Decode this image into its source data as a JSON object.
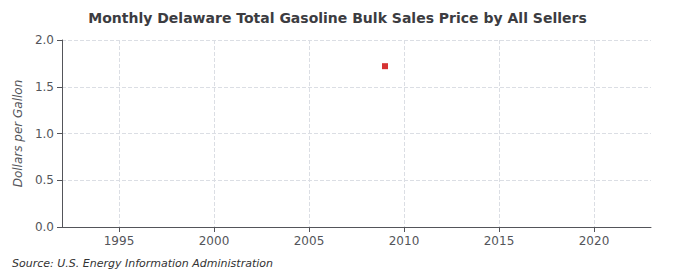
{
  "chart_data": {
    "type": "scatter",
    "title": "Monthly Delaware Total Gasoline Bulk Sales Price by All Sellers",
    "ylabel": "Dollars per Gallon",
    "source": "Source: U.S. Energy Information Administration",
    "x": [
      2009.0
    ],
    "values": [
      1.72
    ],
    "color": "#cc0000",
    "marker": "square",
    "xlim": [
      1992,
      2023
    ],
    "xticks": [
      1995,
      2000,
      2005,
      2010,
      2015,
      2020
    ],
    "ylim": [
      0.0,
      2.0
    ],
    "yticks": [
      {
        "value": 0,
        "label": "0.0"
      },
      0.5,
      {
        "value": 1,
        "label": "1.0"
      },
      1.5,
      {
        "value": 2,
        "label": "2.0"
      }
    ],
    "grid": true
  }
}
